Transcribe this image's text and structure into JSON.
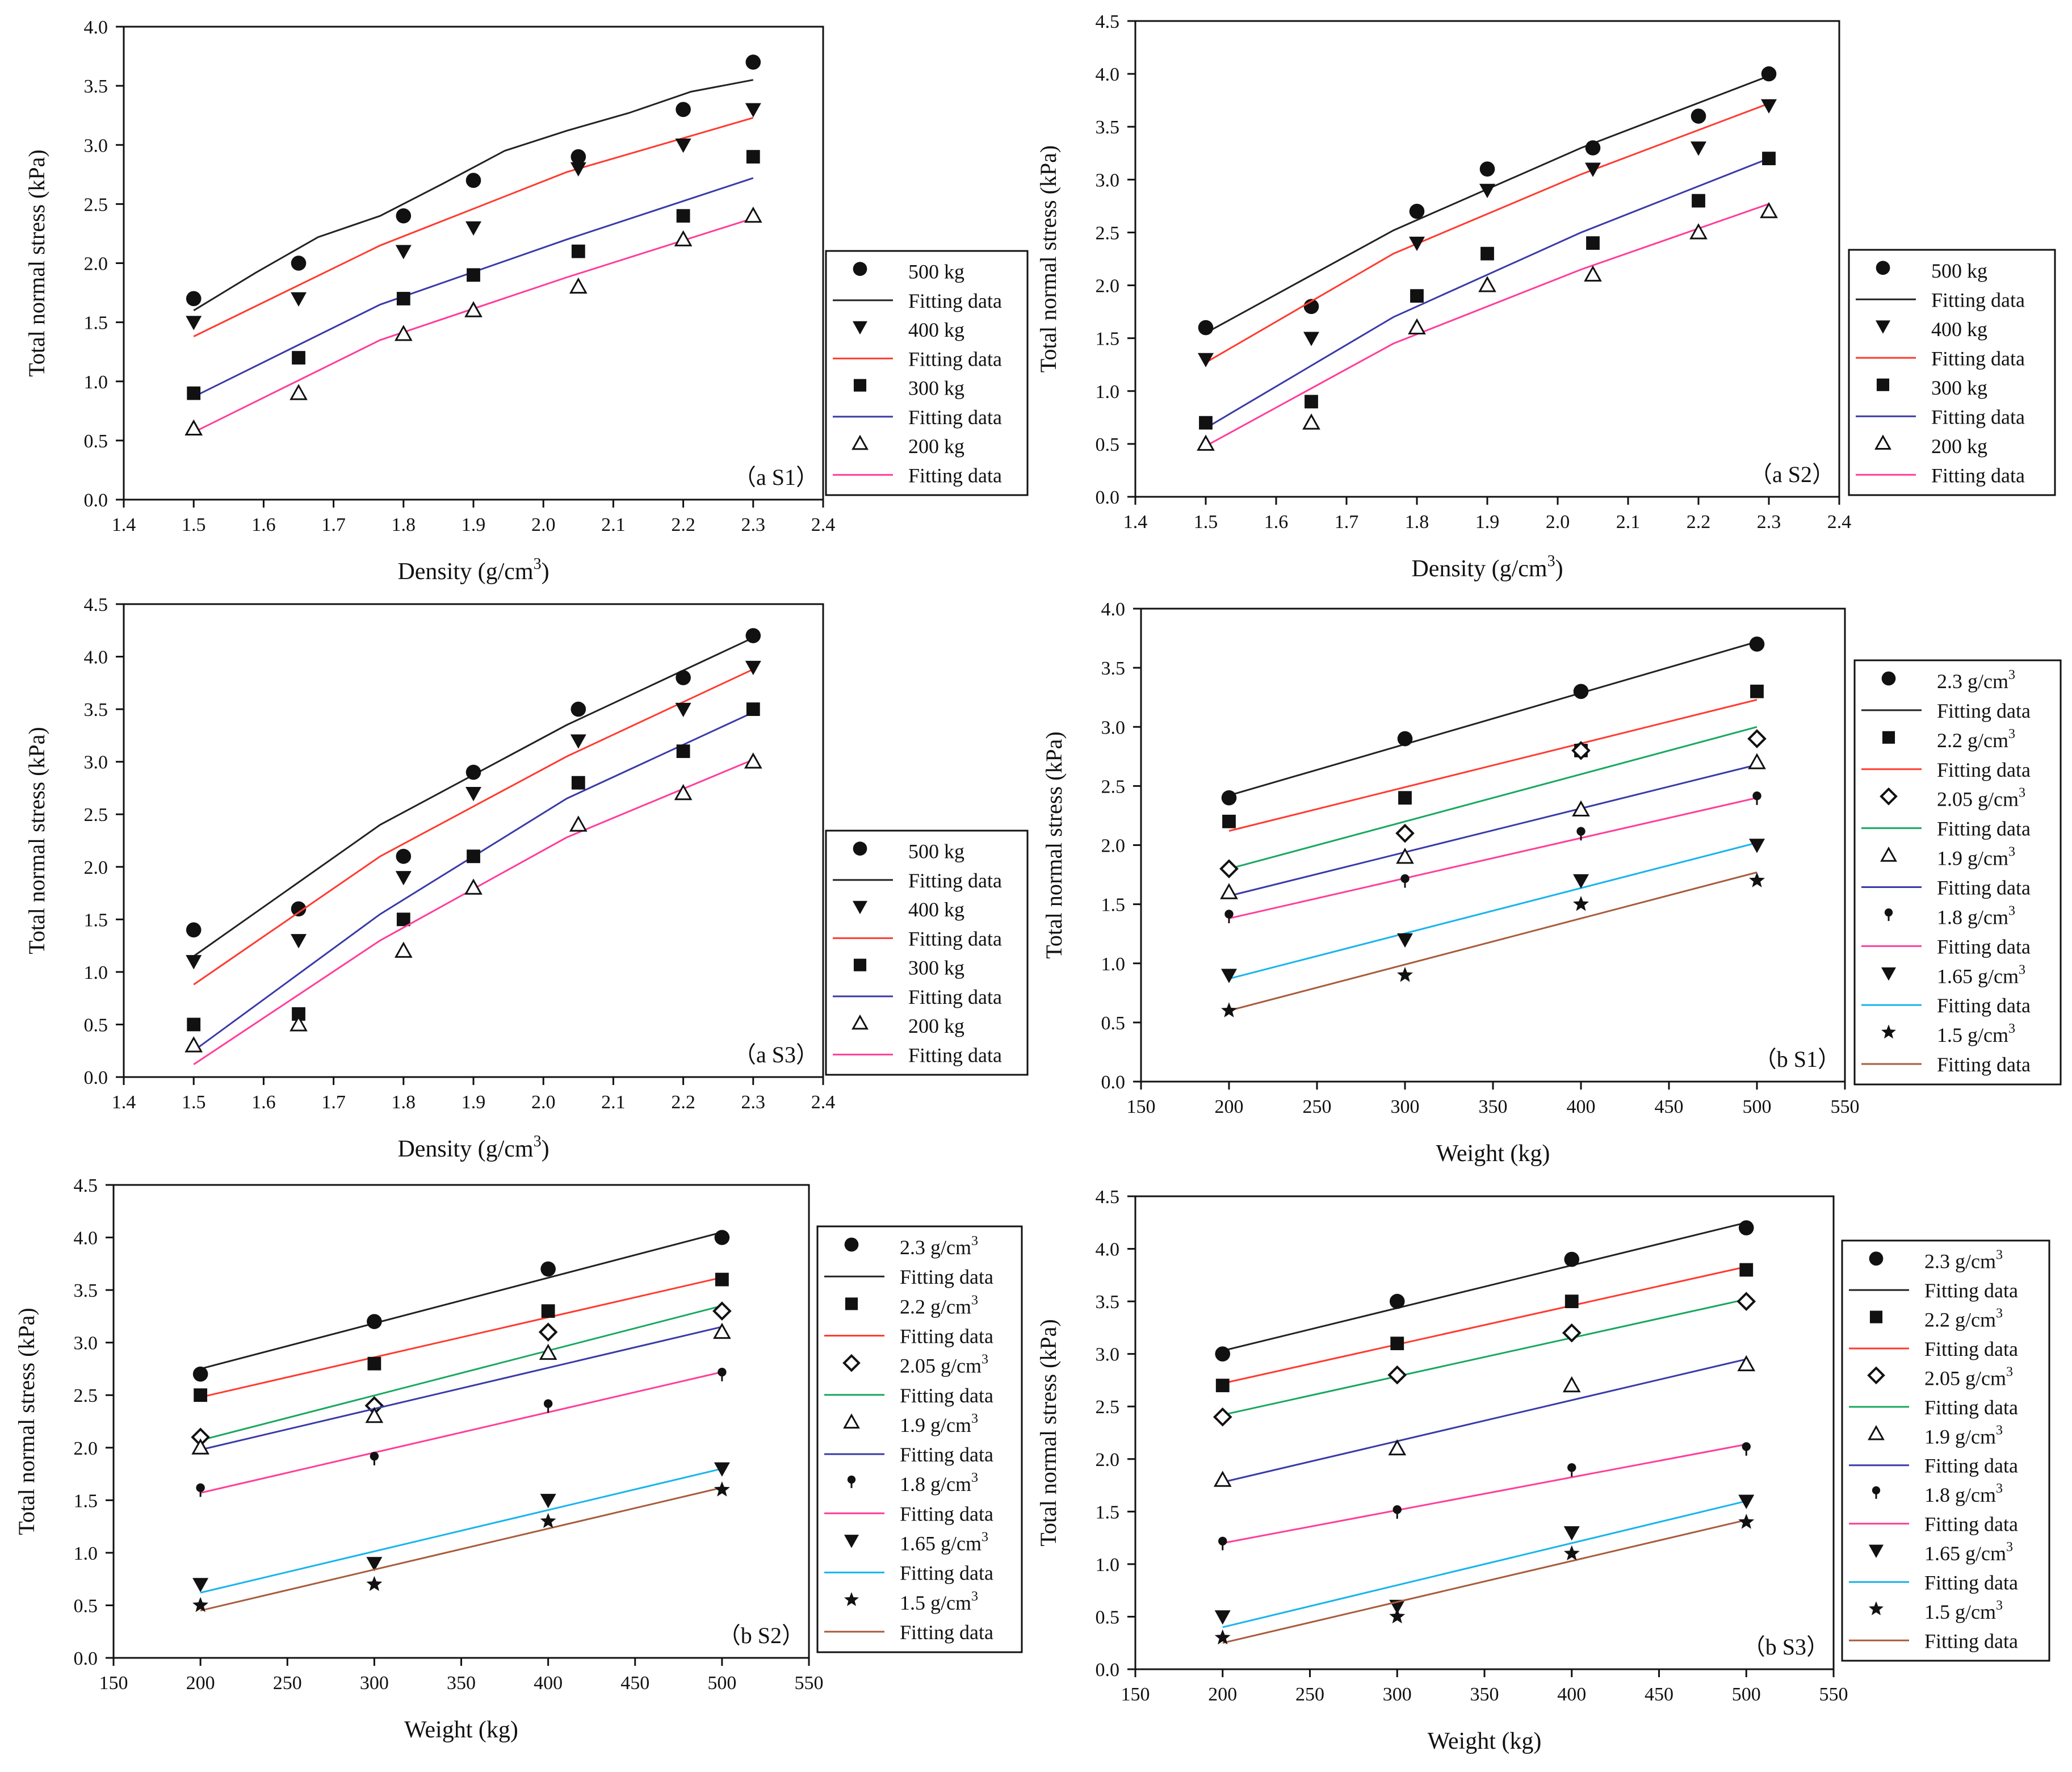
{
  "figure": {
    "ylabel": "Total normal stress (kPa)",
    "density_axis": {
      "label": "Density (g/cm",
      "sup": "3",
      "close": ")"
    },
    "weight_axis": {
      "label": "Weight (kg)"
    },
    "fit_label": "Fitting data"
  },
  "colors": {
    "black": "#222222",
    "red": "#ff3b30",
    "navy": "#3a3aa8",
    "pink": "#ff3e9a",
    "green": "#17a860",
    "cyan": "#18b4ec",
    "brown": "#a85b3c"
  },
  "chart_data": [
    {
      "id": "aS1",
      "type": "scatter",
      "tag": "（a S1）",
      "xlabel": "Density (g/cm3)",
      "ylabel": "Total normal stress (kPa)",
      "xlim": [
        1.4,
        2.4
      ],
      "xticks": [
        "1.4",
        "1.5",
        "1.6",
        "1.7",
        "1.8",
        "1.9",
        "2.0",
        "2.1",
        "2.2",
        "2.3",
        "2.4"
      ],
      "ylim": [
        0,
        4.0
      ],
      "yticks": [
        "0.0",
        "0.5",
        "1.0",
        "1.5",
        "2.0",
        "2.5",
        "3.0",
        "3.5",
        "4.0"
      ],
      "x": [
        1.5,
        1.65,
        1.8,
        1.9,
        2.05,
        2.2,
        2.3
      ],
      "series": [
        {
          "name": "500 kg",
          "marker": "circle",
          "color": "black",
          "values": [
            1.7,
            2.0,
            2.4,
            2.7,
            2.9,
            3.3,
            3.7
          ],
          "fit": [
            1.6,
            1.92,
            2.22,
            2.4,
            2.67,
            2.95,
            3.12,
            3.27,
            3.45,
            3.55
          ]
        },
        {
          "name": "400 kg",
          "marker": "tri-down",
          "color": "red",
          "values": [
            1.5,
            1.7,
            2.1,
            2.3,
            2.8,
            3.0,
            3.3
          ],
          "fit": [
            1.38,
            2.15,
            2.77,
            3.23
          ]
        },
        {
          "name": "300 kg",
          "marker": "square",
          "color": "navy",
          "values": [
            0.9,
            1.2,
            1.7,
            1.9,
            2.1,
            2.4,
            2.9
          ],
          "fit": [
            0.87,
            1.65,
            2.2,
            2.72
          ]
        },
        {
          "name": "200 kg",
          "marker": "tri-up",
          "color": "pink",
          "values": [
            0.6,
            0.9,
            1.4,
            1.6,
            1.8,
            2.2,
            2.4
          ],
          "fit": [
            0.57,
            1.35,
            1.88,
            2.38
          ]
        }
      ]
    },
    {
      "id": "aS2",
      "type": "scatter",
      "tag": "（a S2）",
      "xlabel": "Density (g/cm3)",
      "ylabel": "Total normal stress (kPa)",
      "xlim": [
        1.4,
        2.4
      ],
      "xticks": [
        "1.4",
        "1.5",
        "1.6",
        "1.7",
        "1.8",
        "1.9",
        "2.0",
        "2.1",
        "2.2",
        "2.3",
        "2.4"
      ],
      "ylim": [
        0,
        4.5
      ],
      "yticks": [
        "0.0",
        "0.5",
        "1.0",
        "1.5",
        "2.0",
        "2.5",
        "3.0",
        "3.5",
        "4.0",
        "4.5"
      ],
      "x": [
        1.5,
        1.65,
        1.8,
        1.9,
        2.05,
        2.2,
        2.3
      ],
      "series": [
        {
          "name": "500 kg",
          "marker": "circle",
          "color": "black",
          "values": [
            1.6,
            1.8,
            2.7,
            3.1,
            3.3,
            3.6,
            4.0
          ],
          "fit": [
            1.55,
            2.52,
            3.3,
            3.98
          ]
        },
        {
          "name": "400 kg",
          "marker": "tri-down",
          "color": "red",
          "values": [
            1.3,
            1.5,
            2.4,
            2.9,
            3.1,
            3.3,
            3.7
          ],
          "fit": [
            1.27,
            2.3,
            3.05,
            3.72
          ]
        },
        {
          "name": "300 kg",
          "marker": "square",
          "color": "navy",
          "values": [
            0.7,
            0.9,
            1.9,
            2.3,
            2.4,
            2.8,
            3.2
          ],
          "fit": [
            0.65,
            1.7,
            2.5,
            3.2
          ]
        },
        {
          "name": "200 kg",
          "marker": "tri-up",
          "color": "pink",
          "values": [
            0.5,
            0.7,
            1.6,
            2.0,
            2.1,
            2.5,
            2.7
          ],
          "fit": [
            0.48,
            1.45,
            2.15,
            2.77
          ]
        }
      ]
    },
    {
      "id": "aS3",
      "type": "scatter",
      "tag": "（a S3）",
      "xlabel": "Density (g/cm3)",
      "ylabel": "Total normal stress (kPa)",
      "xlim": [
        1.4,
        2.4
      ],
      "xticks": [
        "1.4",
        "1.5",
        "1.6",
        "1.7",
        "1.8",
        "1.9",
        "2.0",
        "2.1",
        "2.2",
        "2.3",
        "2.4"
      ],
      "ylim": [
        0,
        4.5
      ],
      "yticks": [
        "0.0",
        "0.5",
        "1.0",
        "1.5",
        "2.0",
        "2.5",
        "3.0",
        "3.5",
        "4.0",
        "4.5"
      ],
      "x": [
        1.5,
        1.65,
        1.8,
        1.9,
        2.05,
        2.2,
        2.3
      ],
      "series": [
        {
          "name": "500 kg",
          "marker": "circle",
          "color": "black",
          "values": [
            1.4,
            1.6,
            2.1,
            2.9,
            3.5,
            3.8,
            4.2
          ],
          "fit": [
            1.15,
            2.4,
            3.35,
            4.18
          ]
        },
        {
          "name": "400 kg",
          "marker": "tri-down",
          "color": "red",
          "values": [
            1.1,
            1.3,
            1.9,
            2.7,
            3.2,
            3.5,
            3.9
          ],
          "fit": [
            0.88,
            2.1,
            3.05,
            3.88
          ]
        },
        {
          "name": "300 kg",
          "marker": "square",
          "color": "navy",
          "values": [
            0.5,
            0.6,
            1.5,
            2.1,
            2.8,
            3.1,
            3.5
          ],
          "fit": [
            0.25,
            1.55,
            2.65,
            3.47
          ]
        },
        {
          "name": "200 kg",
          "marker": "tri-up",
          "color": "pink",
          "values": [
            0.3,
            0.5,
            1.2,
            1.8,
            2.4,
            2.7,
            3.0
          ],
          "fit": [
            0.12,
            1.3,
            2.28,
            3.02
          ]
        }
      ]
    },
    {
      "id": "bS1",
      "type": "scatter",
      "tag": "（b S1）",
      "xlabel": "Weight (kg)",
      "ylabel": "Total normal stress (kPa)",
      "xlim": [
        150,
        550
      ],
      "xticks": [
        "150",
        "200",
        "250",
        "300",
        "350",
        "400",
        "450",
        "500",
        "550"
      ],
      "ylim": [
        0,
        4.0
      ],
      "yticks": [
        "0.0",
        "0.5",
        "1.0",
        "1.5",
        "2.0",
        "2.5",
        "3.0",
        "3.5",
        "4.0"
      ],
      "x": [
        200,
        300,
        400,
        500
      ],
      "series": [
        {
          "name": "2.3 g/cm3",
          "marker": "circle",
          "color": "black",
          "values": [
            2.4,
            2.9,
            3.3,
            3.7
          ],
          "fit": [
            2.42,
            3.72
          ]
        },
        {
          "name": "2.2 g/cm3",
          "marker": "square",
          "color": "red",
          "values": [
            2.2,
            2.4,
            2.8,
            3.3
          ],
          "fit": [
            2.12,
            3.23
          ]
        },
        {
          "name": "2.05 g/cm3",
          "marker": "diamond",
          "color": "green",
          "values": [
            1.8,
            2.1,
            2.8,
            2.9
          ],
          "fit": [
            1.8,
            3.0
          ]
        },
        {
          "name": "1.9 g/cm3",
          "marker": "tri-up",
          "color": "navy",
          "values": [
            1.6,
            1.9,
            2.3,
            2.7
          ],
          "fit": [
            1.57,
            2.68
          ]
        },
        {
          "name": "1.8 g/cm3",
          "marker": "pin",
          "color": "pink",
          "values": [
            1.4,
            1.7,
            2.1,
            2.4
          ],
          "fit": [
            1.38,
            2.4
          ]
        },
        {
          "name": "1.65 g/cm3",
          "marker": "tri-down",
          "color": "cyan",
          "values": [
            0.9,
            1.2,
            1.7,
            2.0
          ],
          "fit": [
            0.87,
            2.02
          ]
        },
        {
          "name": "1.5 g/cm3",
          "marker": "star",
          "color": "brown",
          "values": [
            0.6,
            0.9,
            1.5,
            1.7
          ],
          "fit": [
            0.6,
            1.77
          ]
        }
      ]
    },
    {
      "id": "bS2",
      "type": "scatter",
      "tag": "（b S2）",
      "xlabel": "Weight (kg)",
      "ylabel": "Total normal stress (kPa)",
      "xlim": [
        150,
        550
      ],
      "xticks": [
        "150",
        "200",
        "250",
        "300",
        "350",
        "400",
        "450",
        "500",
        "550"
      ],
      "ylim": [
        0,
        4.5
      ],
      "yticks": [
        "0.0",
        "0.5",
        "1.0",
        "1.5",
        "2.0",
        "2.5",
        "3.0",
        "3.5",
        "4.0",
        "4.5"
      ],
      "x": [
        200,
        300,
        400,
        500
      ],
      "series": [
        {
          "name": "2.3 g/cm3",
          "marker": "circle",
          "color": "black",
          "values": [
            2.7,
            3.2,
            3.7,
            4.0
          ],
          "fit": [
            2.75,
            4.05
          ]
        },
        {
          "name": "2.2 g/cm3",
          "marker": "square",
          "color": "red",
          "values": [
            2.5,
            2.8,
            3.3,
            3.6
          ],
          "fit": [
            2.48,
            3.62
          ]
        },
        {
          "name": "2.05 g/cm3",
          "marker": "diamond",
          "color": "green",
          "values": [
            2.1,
            2.4,
            3.1,
            3.3
          ],
          "fit": [
            2.07,
            3.35
          ]
        },
        {
          "name": "1.9 g/cm3",
          "marker": "tri-up",
          "color": "navy",
          "values": [
            2.0,
            2.3,
            2.9,
            3.1
          ],
          "fit": [
            1.98,
            3.15
          ]
        },
        {
          "name": "1.8 g/cm3",
          "marker": "pin",
          "color": "pink",
          "values": [
            1.6,
            1.9,
            2.4,
            2.7
          ],
          "fit": [
            1.57,
            2.72
          ]
        },
        {
          "name": "1.65 g/cm3",
          "marker": "tri-down",
          "color": "cyan",
          "values": [
            0.7,
            0.9,
            1.5,
            1.8
          ],
          "fit": [
            0.62,
            1.8
          ]
        },
        {
          "name": "1.5 g/cm3",
          "marker": "star",
          "color": "brown",
          "values": [
            0.5,
            0.7,
            1.3,
            1.6
          ],
          "fit": [
            0.45,
            1.62
          ]
        }
      ]
    },
    {
      "id": "bS3",
      "type": "scatter",
      "tag": "（b S3）",
      "xlabel": "Weight (kg)",
      "ylabel": "Total normal stress (kPa)",
      "xlim": [
        150,
        550
      ],
      "xticks": [
        "150",
        "200",
        "250",
        "300",
        "350",
        "400",
        "450",
        "500",
        "550"
      ],
      "ylim": [
        0,
        4.5
      ],
      "yticks": [
        "0.0",
        "0.5",
        "1.0",
        "1.5",
        "2.0",
        "2.5",
        "3.0",
        "3.5",
        "4.0",
        "4.5"
      ],
      "x": [
        200,
        300,
        400,
        500
      ],
      "series": [
        {
          "name": "2.3 g/cm3",
          "marker": "circle",
          "color": "black",
          "values": [
            3.0,
            3.5,
            3.9,
            4.2
          ],
          "fit": [
            3.03,
            4.25
          ]
        },
        {
          "name": "2.2 g/cm3",
          "marker": "square",
          "color": "red",
          "values": [
            2.7,
            3.1,
            3.5,
            3.8
          ],
          "fit": [
            2.72,
            3.83
          ]
        },
        {
          "name": "2.05 g/cm3",
          "marker": "diamond",
          "color": "green",
          "values": [
            2.4,
            2.8,
            3.2,
            3.5
          ],
          "fit": [
            2.42,
            3.52
          ]
        },
        {
          "name": "1.9 g/cm3",
          "marker": "tri-up",
          "color": "navy",
          "values": [
            1.8,
            2.1,
            2.7,
            2.9
          ],
          "fit": [
            1.78,
            2.95
          ]
        },
        {
          "name": "1.8 g/cm3",
          "marker": "pin",
          "color": "pink",
          "values": [
            1.2,
            1.5,
            1.9,
            2.1
          ],
          "fit": [
            1.2,
            2.14
          ]
        },
        {
          "name": "1.65 g/cm3",
          "marker": "tri-down",
          "color": "cyan",
          "values": [
            0.5,
            0.6,
            1.3,
            1.6
          ],
          "fit": [
            0.4,
            1.6
          ]
        },
        {
          "name": "1.5 g/cm3",
          "marker": "star",
          "color": "brown",
          "values": [
            0.3,
            0.5,
            1.1,
            1.4
          ],
          "fit": [
            0.25,
            1.42
          ]
        }
      ]
    }
  ]
}
